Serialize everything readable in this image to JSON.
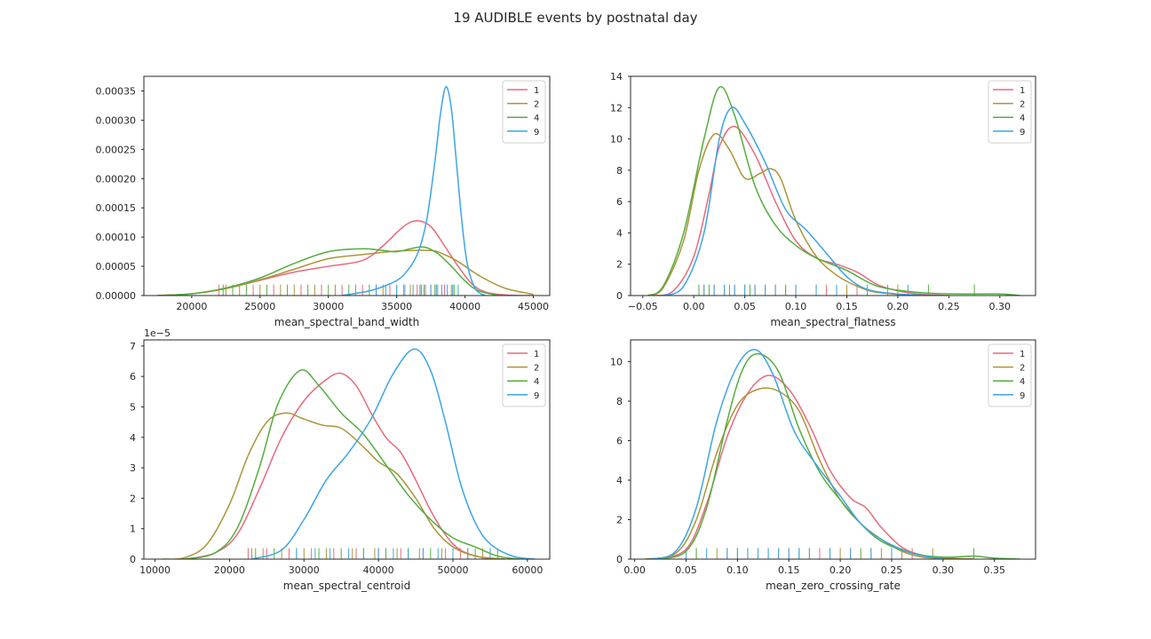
{
  "figure": {
    "title": "19 AUDIBLE events by postnatal day"
  },
  "colors": {
    "1": "#e8697e",
    "2": "#ac9438",
    "4": "#53ae3d",
    "9": "#3ca5e5"
  },
  "chart_data": [
    {
      "type": "line",
      "id": "band_width",
      "xlabel": "mean_spectral_band_width",
      "ylabel": "",
      "xlim": [
        16500,
        46200
      ],
      "ylim": [
        0,
        0.000375
      ],
      "xticks": [
        20000,
        25000,
        30000,
        35000,
        40000,
        45000
      ],
      "xtick_labels": [
        "20000",
        "25000",
        "30000",
        "35000",
        "40000",
        "45000"
      ],
      "yticks": [
        0,
        5e-05,
        0.0001,
        0.00015,
        0.0002,
        0.00025,
        0.0003,
        0.00035
      ],
      "ytick_labels": [
        "0.00000",
        "0.00005",
        "0.00010",
        "0.00015",
        "0.00020",
        "0.00025",
        "0.00030",
        "0.00035"
      ],
      "offset_label": "",
      "legend": "top-right",
      "series": [
        {
          "name": "1",
          "x": [
            17500,
            20000,
            22500,
            25000,
            27500,
            30000,
            32500,
            34000,
            35500,
            36500,
            37500,
            38500,
            39500,
            40500,
            41500,
            43000,
            45000
          ],
          "y": [
            0,
            3e-06,
            1.2e-05,
            2.6e-05,
            4e-05,
            5e-05,
            6e-05,
            8.5e-05,
            0.000118,
            0.000128,
            0.000118,
            8.5e-05,
            5e-05,
            2e-05,
            6e-06,
            1e-06,
            0
          ]
        },
        {
          "name": "2",
          "x": [
            17500,
            20000,
            22500,
            25000,
            27500,
            30000,
            32500,
            35000,
            37500,
            38500,
            39500,
            40500,
            41500,
            43000,
            45000
          ],
          "y": [
            0,
            3e-06,
            1.2e-05,
            2.7e-05,
            4.5e-05,
            6.3e-05,
            7e-05,
            7.6e-05,
            7.7e-05,
            7e-05,
            5.8e-05,
            4.2e-05,
            2.8e-05,
            1.2e-05,
            2e-06
          ]
        },
        {
          "name": "4",
          "x": [
            17500,
            20000,
            22500,
            25000,
            27500,
            30000,
            32500,
            34000,
            35000,
            36000,
            37000,
            38000,
            39000,
            40000,
            41000,
            42500
          ],
          "y": [
            0,
            3e-06,
            1.3e-05,
            3e-05,
            5.5e-05,
            7.5e-05,
            8e-05,
            7.7e-05,
            7.5e-05,
            8e-05,
            8.3e-05,
            7.2e-05,
            5e-05,
            2.5e-05,
            8e-06,
            0
          ]
        },
        {
          "name": "9",
          "x": [
            31000,
            33000,
            34500,
            35500,
            36500,
            37200,
            37800,
            38200,
            38600,
            39000,
            39400,
            39800,
            40200,
            40800,
            41500
          ],
          "y": [
            0,
            8e-06,
            2e-05,
            3.5e-05,
            7e-05,
            0.00013,
            0.00023,
            0.00031,
            0.000357,
            0.00032,
            0.00022,
            0.00012,
            5e-05,
            1e-05,
            0
          ]
        }
      ],
      "rug": {
        "height_frac": 0.05,
        "1": [
          22000,
          24500,
          26000,
          28000,
          29500,
          31000,
          32500,
          33500,
          34500,
          35500,
          36500,
          37500,
          38500
        ],
        "2": [
          22500,
          23500,
          25000,
          26500,
          27500,
          29000,
          30500,
          32000,
          34000,
          36000,
          37000,
          38000,
          39000
        ],
        "4": [
          22300,
          23000,
          24000,
          25500,
          27000,
          28500,
          30000,
          31500,
          33000,
          35000,
          36800,
          37800,
          39200
        ],
        "9": [
          33500,
          34200,
          35000,
          35600,
          36200,
          36700,
          37100,
          37500,
          37900,
          38300,
          38700,
          39100,
          39500
        ]
      }
    },
    {
      "type": "line",
      "id": "flatness",
      "xlabel": "mean_spectral_flatness",
      "ylabel": "",
      "xlim": [
        -0.062,
        0.335
      ],
      "ylim": [
        0,
        14
      ],
      "xticks": [
        -0.05,
        0,
        0.05,
        0.1,
        0.15,
        0.2,
        0.25,
        0.3
      ],
      "xtick_labels": [
        "−0.05",
        "0.00",
        "0.05",
        "0.10",
        "0.15",
        "0.20",
        "0.25",
        "0.30"
      ],
      "yticks": [
        0,
        2,
        4,
        6,
        8,
        10,
        12,
        14
      ],
      "ytick_labels": [
        "0",
        "2",
        "4",
        "6",
        "8",
        "10",
        "12",
        "14"
      ],
      "offset_label": "",
      "legend": "top-right",
      "series": [
        {
          "name": "1",
          "x": [
            -0.04,
            -0.02,
            0.0,
            0.015,
            0.025,
            0.04,
            0.06,
            0.08,
            0.1,
            0.12,
            0.14,
            0.16,
            0.18,
            0.2,
            0.22,
            0.25
          ],
          "y": [
            0,
            0.3,
            2.5,
            6.5,
            9.5,
            10.8,
            9.0,
            6.0,
            3.5,
            2.4,
            2.0,
            1.5,
            0.7,
            0.3,
            0.1,
            0
          ]
        },
        {
          "name": "2",
          "x": [
            -0.045,
            -0.03,
            -0.01,
            0.005,
            0.02,
            0.035,
            0.05,
            0.065,
            0.075,
            0.085,
            0.1,
            0.12,
            0.14,
            0.16,
            0.18,
            0.22
          ],
          "y": [
            0,
            0.5,
            3.5,
            8.0,
            10.3,
            9.3,
            7.5,
            7.8,
            8.1,
            7.5,
            4.8,
            2.5,
            1.3,
            0.6,
            0.2,
            0
          ]
        },
        {
          "name": "4",
          "x": [
            -0.045,
            -0.03,
            -0.01,
            0.01,
            0.025,
            0.04,
            0.06,
            0.08,
            0.1,
            0.12,
            0.15,
            0.18,
            0.22,
            0.26,
            0.3,
            0.32
          ],
          "y": [
            0,
            0.6,
            4.0,
            10.0,
            13.3,
            11.5,
            7.0,
            4.5,
            3.2,
            2.4,
            1.6,
            0.6,
            0.2,
            0.1,
            0.1,
            0
          ]
        },
        {
          "name": "9",
          "x": [
            -0.03,
            -0.01,
            0.01,
            0.025,
            0.037,
            0.05,
            0.07,
            0.09,
            0.11,
            0.13,
            0.15,
            0.17,
            0.2,
            0.24
          ],
          "y": [
            0,
            0.6,
            4.0,
            10.0,
            12.0,
            11.0,
            8.5,
            5.5,
            4.2,
            2.7,
            1.2,
            0.4,
            0.1,
            0
          ]
        }
      ],
      "rug": {
        "height_frac": 0.05,
        "1": [
          0.02,
          0.04,
          0.06,
          0.08,
          0.1,
          0.13,
          0.16,
          0.19
        ],
        "2": [
          0.01,
          0.03,
          0.05,
          0.07,
          0.09,
          0.12,
          0.15,
          0.2
        ],
        "4": [
          0.005,
          0.015,
          0.035,
          0.055,
          0.09,
          0.14,
          0.23,
          0.275
        ],
        "9": [
          0.01,
          0.02,
          0.03,
          0.04,
          0.05,
          0.06,
          0.07,
          0.08,
          0.1,
          0.12,
          0.14,
          0.17,
          0.21
        ]
      }
    },
    {
      "type": "line",
      "id": "centroid",
      "xlabel": "mean_spectral_centroid",
      "ylabel": "",
      "xlim": [
        8500,
        63000
      ],
      "ylim": [
        0,
        7.2
      ],
      "xticks": [
        10000,
        20000,
        30000,
        40000,
        50000,
        60000
      ],
      "xtick_labels": [
        "10000",
        "20000",
        "30000",
        "40000",
        "50000",
        "60000"
      ],
      "yticks": [
        0,
        1,
        2,
        3,
        4,
        5,
        6,
        7
      ],
      "ytick_labels": [
        "0",
        "1",
        "2",
        "3",
        "4",
        "5",
        "6",
        "7"
      ],
      "offset_label": "1e−5",
      "legend": "top-right",
      "series": [
        {
          "name": "1",
          "x": [
            14000,
            18000,
            21000,
            24000,
            27000,
            30000,
            33000,
            35000,
            37000,
            39000,
            41000,
            43000,
            45000,
            47000,
            49000,
            51000,
            54000,
            57000
          ],
          "y": [
            0,
            0.2,
            0.8,
            2.3,
            4.0,
            5.2,
            5.9,
            6.1,
            5.7,
            4.8,
            4.0,
            3.5,
            2.6,
            1.6,
            0.8,
            0.3,
            0.05,
            0
          ]
        },
        {
          "name": "2",
          "x": [
            11000,
            14000,
            17000,
            20000,
            22500,
            25000,
            27500,
            30000,
            32500,
            35000,
            37500,
            40000,
            42500,
            45000,
            47500,
            50000,
            53000,
            57000
          ],
          "y": [
            0,
            0.05,
            0.5,
            1.8,
            3.4,
            4.5,
            4.8,
            4.6,
            4.4,
            4.3,
            3.8,
            3.2,
            2.8,
            2.0,
            1.0,
            0.4,
            0.1,
            0
          ]
        },
        {
          "name": "4",
          "x": [
            14000,
            18000,
            21000,
            24000,
            26500,
            29500,
            32000,
            35000,
            38000,
            41000,
            44000,
            47000,
            50000,
            53000,
            56000,
            59000
          ],
          "y": [
            0,
            0.2,
            1.0,
            3.0,
            5.1,
            6.2,
            5.7,
            4.8,
            4.1,
            3.1,
            2.1,
            1.3,
            0.7,
            0.4,
            0.1,
            0
          ]
        },
        {
          "name": "9",
          "x": [
            23000,
            27000,
            30000,
            33000,
            36000,
            39000,
            42000,
            44800,
            47000,
            49000,
            51000,
            53000,
            55000,
            58000,
            61000
          ],
          "y": [
            0,
            0.3,
            1.3,
            2.6,
            3.5,
            4.6,
            6.1,
            6.9,
            6.2,
            4.5,
            2.5,
            1.2,
            0.5,
            0.1,
            0
          ]
        }
      ],
      "rug": {
        "height_frac": 0.05,
        "1": [
          22500,
          25000,
          28000,
          31000,
          34000,
          37000,
          40000,
          43000,
          46000,
          49000,
          51000,
          55000
        ],
        "2": [
          23000,
          24500,
          27000,
          30000,
          33000,
          36500,
          39500,
          42500,
          45500,
          48500,
          52000,
          54000
        ],
        "4": [
          23500,
          26000,
          29000,
          32000,
          35000,
          38000,
          41000,
          44000,
          47000,
          50000,
          53000,
          56000
        ],
        "9": [
          29000,
          31500,
          33500,
          36000,
          38000,
          40000,
          42000,
          44000,
          46000,
          48000,
          50000,
          52000,
          55000
        ]
      }
    },
    {
      "type": "line",
      "id": "zcr",
      "xlabel": "mean_zero_crossing_rate",
      "ylabel": "",
      "xlim": [
        -0.004,
        0.39
      ],
      "ylim": [
        0,
        11.1
      ],
      "xticks": [
        0,
        0.05,
        0.1,
        0.15,
        0.2,
        0.25,
        0.3,
        0.35
      ],
      "xtick_labels": [
        "0.00",
        "0.05",
        "0.10",
        "0.15",
        "0.20",
        "0.25",
        "0.30",
        "0.35"
      ],
      "yticks": [
        0,
        2,
        4,
        6,
        8,
        10
      ],
      "ytick_labels": [
        "0",
        "2",
        "4",
        "6",
        "8",
        "10"
      ],
      "offset_label": "",
      "legend": "top-right",
      "series": [
        {
          "name": "1",
          "x": [
            0.02,
            0.05,
            0.07,
            0.09,
            0.11,
            0.13,
            0.15,
            0.17,
            0.19,
            0.21,
            0.225,
            0.24,
            0.26,
            0.28,
            0.3,
            0.33
          ],
          "y": [
            0,
            0.5,
            2.8,
            6.2,
            8.4,
            9.3,
            8.6,
            6.8,
            4.5,
            3.1,
            2.6,
            1.6,
            0.6,
            0.2,
            0.05,
            0
          ]
        },
        {
          "name": "2",
          "x": [
            0.01,
            0.04,
            0.06,
            0.08,
            0.1,
            0.12,
            0.14,
            0.16,
            0.18,
            0.2,
            0.22,
            0.24,
            0.26,
            0.28,
            0.3,
            0.33
          ],
          "y": [
            0,
            0.3,
            2.0,
            5.4,
            7.8,
            8.6,
            8.5,
            7.5,
            5.0,
            3.0,
            1.8,
            1.0,
            0.4,
            0.1,
            0.05,
            0
          ]
        },
        {
          "name": "4",
          "x": [
            0.02,
            0.05,
            0.07,
            0.09,
            0.105,
            0.12,
            0.14,
            0.16,
            0.18,
            0.2,
            0.22,
            0.24,
            0.27,
            0.3,
            0.33,
            0.35,
            0.375
          ],
          "y": [
            0,
            0.4,
            2.6,
            7.0,
            9.6,
            10.4,
            9.5,
            6.6,
            4.4,
            3.0,
            1.8,
            0.9,
            0.3,
            0.1,
            0.15,
            0.05,
            0
          ]
        },
        {
          "name": "9",
          "x": [
            0.015,
            0.04,
            0.06,
            0.08,
            0.1,
            0.118,
            0.135,
            0.155,
            0.175,
            0.2,
            0.22,
            0.24,
            0.27,
            0.3
          ],
          "y": [
            0,
            0.4,
            2.6,
            7.0,
            9.8,
            10.6,
            9.3,
            6.5,
            4.9,
            3.2,
            1.8,
            1.0,
            0.3,
            0
          ]
        }
      ],
      "rug": {
        "height_frac": 0.05,
        "1": [
          0.06,
          0.09,
          0.12,
          0.15,
          0.18,
          0.21,
          0.24,
          0.27
        ],
        "2": [
          0.05,
          0.08,
          0.11,
          0.14,
          0.17,
          0.2,
          0.23,
          0.26,
          0.29
        ],
        "4": [
          0.06,
          0.1,
          0.13,
          0.16,
          0.19,
          0.22,
          0.25,
          0.33
        ],
        "9": [
          0.05,
          0.07,
          0.09,
          0.1,
          0.11,
          0.12,
          0.13,
          0.14,
          0.15,
          0.16,
          0.17,
          0.19,
          0.21,
          0.23,
          0.25
        ]
      }
    }
  ]
}
